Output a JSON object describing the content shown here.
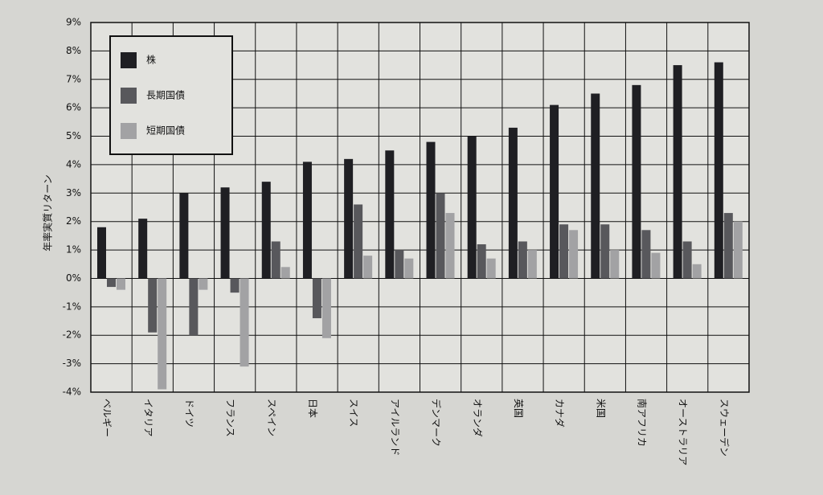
{
  "chart_data": {
    "type": "bar",
    "y_label": "年率実質リターン",
    "categories": [
      "ベルギー",
      "イタリア",
      "ドイツ",
      "フランス",
      "スペイン",
      "日本",
      "スイス",
      "アイルランド",
      "デンマーク",
      "オランダ",
      "英国",
      "カナダ",
      "米国",
      "南アフリカ",
      "オーストラリア",
      "スウェーデン"
    ],
    "series": [
      {
        "name": "株",
        "color": "#1f1f23",
        "values": [
          1.8,
          2.1,
          3.0,
          3.2,
          3.4,
          4.1,
          4.2,
          4.5,
          4.8,
          5.0,
          5.3,
          6.1,
          6.5,
          6.8,
          7.5,
          7.6
        ]
      },
      {
        "name": "長期国債",
        "color": "#58585c",
        "values": [
          -0.3,
          -1.9,
          -2.0,
          -0.5,
          1.3,
          -1.4,
          2.6,
          1.0,
          3.0,
          1.2,
          1.3,
          1.9,
          1.9,
          1.7,
          1.3,
          2.3
        ]
      },
      {
        "name": "短期国債",
        "color": "#a2a2a4",
        "values": [
          -0.4,
          -3.9,
          -0.4,
          -3.1,
          0.4,
          -2.1,
          0.8,
          0.7,
          2.3,
          0.7,
          1.0,
          1.7,
          1.0,
          0.9,
          0.5,
          2.0
        ]
      }
    ],
    "ylim": [
      -4,
      9
    ],
    "yticks": [
      {
        "value": -4,
        "label": "-4%"
      },
      {
        "value": -3,
        "label": "-3%"
      },
      {
        "value": -2,
        "label": "-2%"
      },
      {
        "value": -1,
        "label": "-1%"
      },
      {
        "value": 0,
        "label": "0%"
      },
      {
        "value": 1,
        "label": "1%"
      },
      {
        "value": 2,
        "label": "2%"
      },
      {
        "value": 3,
        "label": "3%"
      },
      {
        "value": 4,
        "label": "4%"
      },
      {
        "value": 5,
        "label": "5%"
      },
      {
        "value": 6,
        "label": "6%"
      },
      {
        "value": 7,
        "label": "7%"
      },
      {
        "value": 8,
        "label": "8%"
      },
      {
        "value": 9,
        "label": "9%"
      }
    ],
    "grid": true
  }
}
